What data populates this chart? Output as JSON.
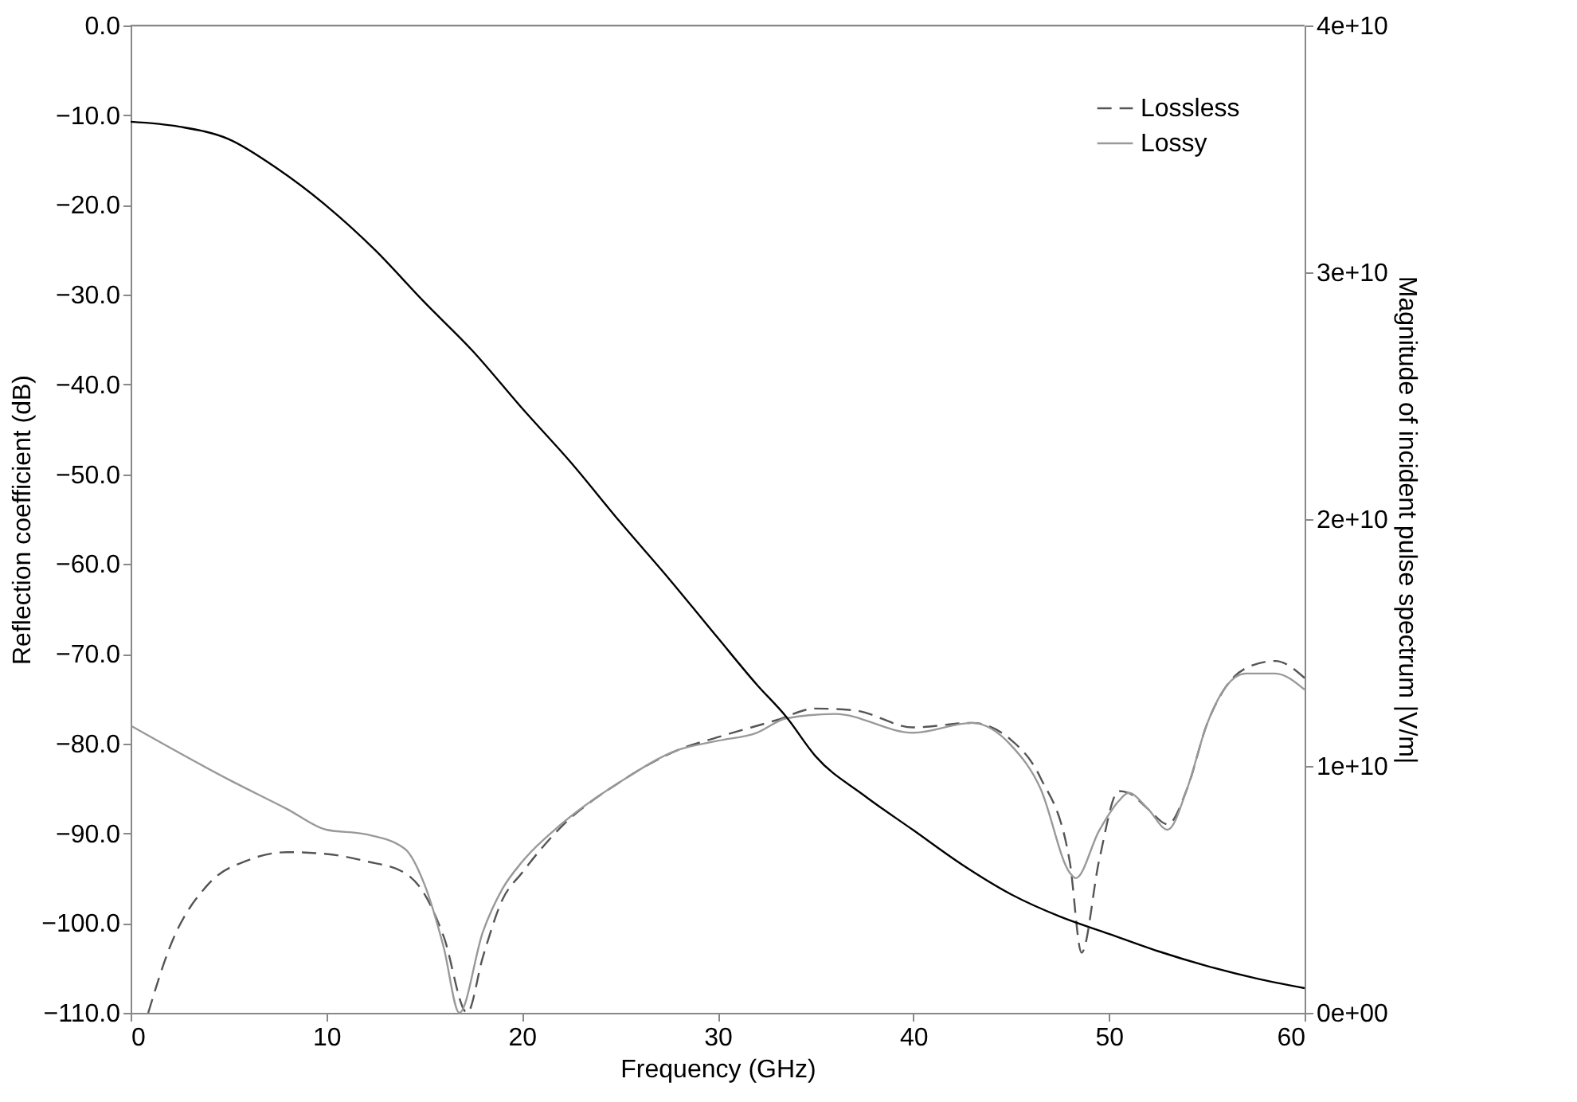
{
  "chart_data": {
    "type": "line",
    "xlabel": "Frequency (GHz)",
    "ylabel": "Reflection coefficient (dB)",
    "y2label": "Magnitude of incident pulse spectrum |V/m|",
    "xlim": [
      0,
      60
    ],
    "xticks": [
      0,
      10,
      20,
      30,
      40,
      50,
      60
    ],
    "ylim": [
      -110,
      0
    ],
    "yticks": [
      {
        "value": 0,
        "label": "0.0"
      },
      {
        "value": -10,
        "label": "−10.0"
      },
      {
        "value": -20,
        "label": "−20.0"
      },
      {
        "value": -30,
        "label": "−30.0"
      },
      {
        "value": -40,
        "label": "−40.0"
      },
      {
        "value": -50,
        "label": "−50.0"
      },
      {
        "value": -60,
        "label": "−60.0"
      },
      {
        "value": -70,
        "label": "−70.0"
      },
      {
        "value": -80,
        "label": "−80.0"
      },
      {
        "value": -90,
        "label": "−90.0"
      },
      {
        "value": -100,
        "label": "−100.0"
      },
      {
        "value": -110,
        "label": "−110.0"
      }
    ],
    "y2lim": [
      0,
      40000000000
    ],
    "y2ticks": [
      {
        "value": 0,
        "label": "0e+00"
      },
      {
        "value": 10000000000,
        "label": "1e+10"
      },
      {
        "value": 20000000000,
        "label": "2e+10"
      },
      {
        "value": 30000000000,
        "label": "3e+10"
      },
      {
        "value": 40000000000,
        "label": "4e+10"
      }
    ],
    "grid": false,
    "legend": "top right",
    "marker": "none",
    "series": [
      {
        "name": "Lossless",
        "color": "#555555",
        "line_style": "dashed",
        "x": [
          0.9,
          2,
          4,
          6,
          8,
          10,
          12,
          14,
          15,
          16,
          17.2,
          18,
          19,
          20,
          22,
          25,
          28,
          30,
          33,
          35,
          37,
          40,
          43,
          45,
          46.5,
          48,
          48.6,
          49.5,
          50.5,
          51,
          52,
          53,
          54,
          55,
          56,
          57,
          58.5,
          60
        ],
        "values": [
          -110,
          -102.7,
          -95.6,
          -93,
          -92.1,
          -92.3,
          -93.1,
          -94.4,
          -96.7,
          -101.5,
          -110,
          -103.8,
          -97.4,
          -94.4,
          -89.3,
          -84.3,
          -80.7,
          -79.3,
          -77.4,
          -76.1,
          -76.3,
          -78.2,
          -77.7,
          -79.6,
          -83.8,
          -93.2,
          -103.3,
          -93,
          -85.3,
          -85.5,
          -87.3,
          -89,
          -85,
          -77.9,
          -73.6,
          -71.6,
          -70.8,
          -72.7
        ]
      },
      {
        "name": "Lossy",
        "color": "#999999",
        "line_style": "solid",
        "x": [
          0,
          5,
          8,
          10,
          12,
          14,
          15,
          16,
          16.8,
          18,
          19,
          20,
          22,
          25,
          28,
          30,
          32,
          33.5,
          36,
          40,
          43,
          45,
          46.5,
          48,
          48.3,
          49.5,
          50.5,
          51,
          52,
          53,
          54,
          55,
          56,
          57,
          58.5,
          60
        ],
        "values": [
          -78,
          -84,
          -87.3,
          -89.6,
          -90.1,
          -91.7,
          -95.6,
          -102.7,
          -110,
          -101,
          -96.2,
          -93.2,
          -89,
          -84.3,
          -80.7,
          -79.7,
          -78.8,
          -77.2,
          -76.7,
          -78.8,
          -77.7,
          -80.2,
          -85,
          -94.4,
          -95,
          -89.7,
          -86.4,
          -85.5,
          -87.3,
          -89.6,
          -85,
          -77.9,
          -73.6,
          -72.2,
          -72.2,
          -74
        ]
      },
      {
        "color": "#000000",
        "line_style": "solid",
        "axis": "y2",
        "x": [
          0,
          2.5,
          5,
          7.5,
          10,
          12.5,
          15,
          17.5,
          20,
          22.5,
          25,
          27.5,
          30,
          32,
          33.5,
          35,
          37.5,
          40,
          42.5,
          45,
          47.5,
          50,
          52.5,
          55,
          57.5,
          60
        ],
        "values": [
          36100000000,
          35900000000,
          35400000000,
          34200000000,
          32700000000,
          30900000000,
          28800000000,
          26800000000,
          24500000000,
          22300000000,
          19900000000,
          17600000000,
          15200000000,
          13300000000,
          12000000000,
          10400000000,
          8800000000,
          7400000000,
          6000000000,
          4800000000,
          3900000000,
          3200000000,
          2500000000,
          1900000000,
          1400000000,
          1000000000
        ]
      }
    ]
  }
}
